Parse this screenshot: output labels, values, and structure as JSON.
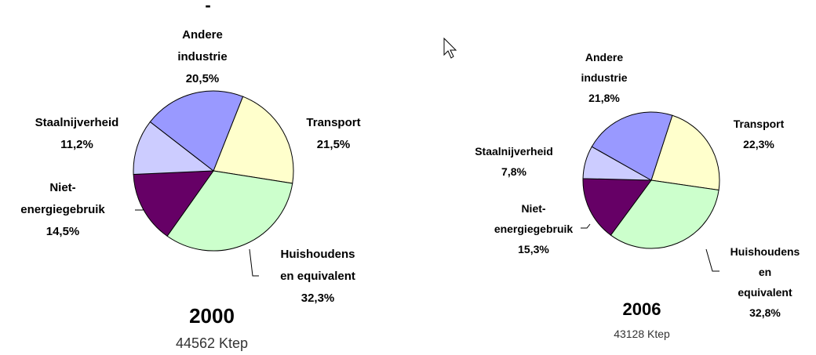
{
  "annotation": "-",
  "chart_data": [
    {
      "type": "pie",
      "title": "2000",
      "subtitle": "44562 Ktep",
      "categories": [
        "Transport",
        "Huishoudens\nen equivalent",
        "Niet-\nenergiegebruik",
        "Staalnijverheid",
        "Andere\nindustrie"
      ],
      "values": [
        21.5,
        32.3,
        14.5,
        11.2,
        20.5
      ],
      "value_labels": [
        "21,5%",
        "32,3%",
        "14,5%",
        "11,2%",
        "20,5%"
      ],
      "colors": [
        "#ffffcc",
        "#ccffcc",
        "#660066",
        "#ccccff",
        "#9999ff"
      ]
    },
    {
      "type": "pie",
      "title": "2006",
      "subtitle": "43128 Ktep",
      "categories": [
        "Transport",
        "Huishoudens\nen equivalent",
        "Niet-\nenergiegebruik",
        "Staalnijverheid",
        "Andere\nindustrie"
      ],
      "values": [
        22.3,
        32.8,
        15.3,
        7.8,
        21.8
      ],
      "value_labels": [
        "22,3%",
        "32,8%",
        "15,3%",
        "7,8%",
        "21,8%"
      ],
      "colors": [
        "#ffffcc",
        "#ccffcc",
        "#660066",
        "#ccccff",
        "#9999ff"
      ]
    }
  ]
}
